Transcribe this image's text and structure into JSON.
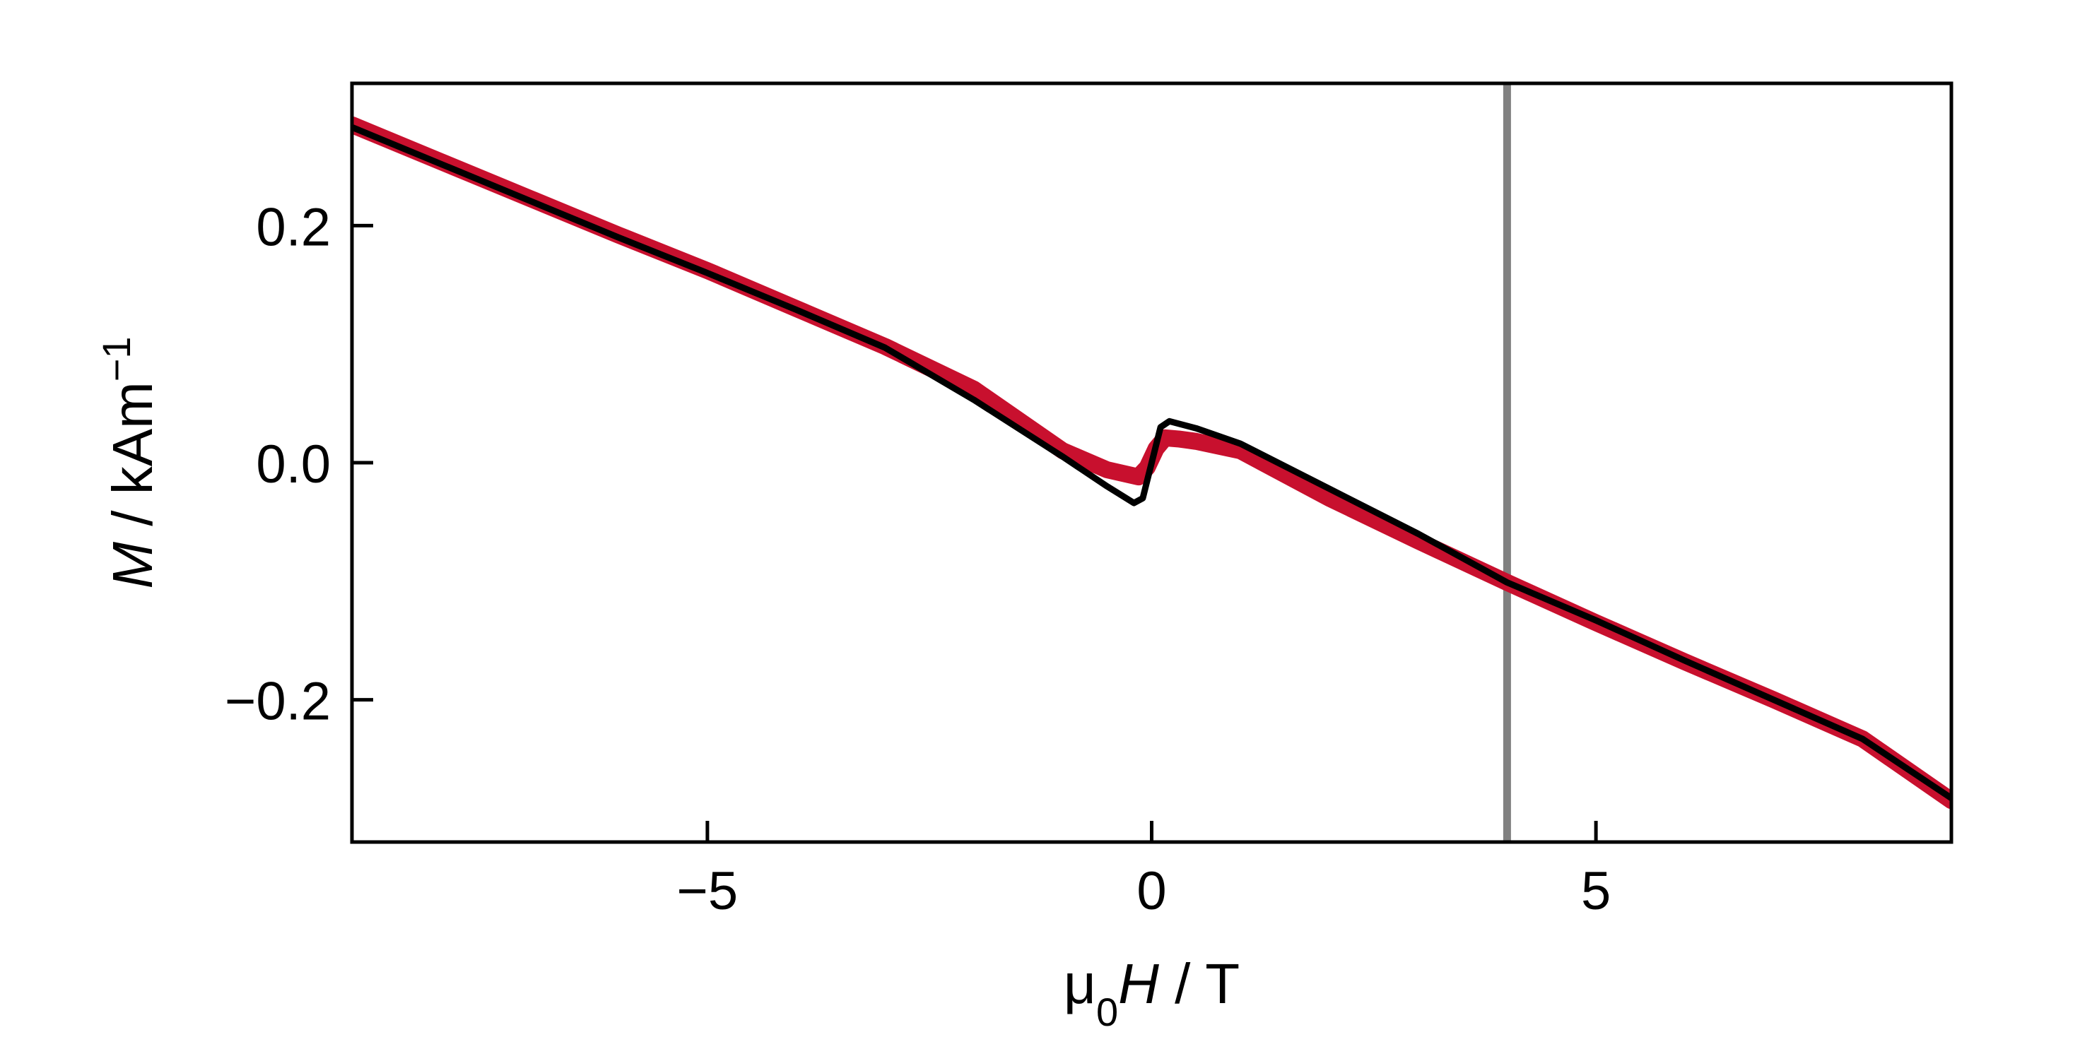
{
  "chart_data": {
    "type": "line",
    "xlabel": {
      "pre": "μ",
      "sub": "0",
      "italic": "H",
      "post": " / T"
    },
    "ylabel": {
      "italic": "M",
      "post": " / kAm",
      "sup": "−1"
    },
    "xlim": [
      -9,
      9
    ],
    "ylim": [
      -0.32,
      0.32
    ],
    "x_ticks": [
      -5,
      0,
      5
    ],
    "x_tick_labels": [
      "−5",
      "0",
      "5"
    ],
    "y_ticks": [
      -0.2,
      0.0,
      0.2
    ],
    "y_tick_labels": [
      "−0.2",
      "0.0",
      "0.2"
    ],
    "grid": false,
    "legend": "none",
    "vertical_line_x": 4.0,
    "series": [
      {
        "style": "thick-band",
        "color": "#c8102e",
        "x": [
          -9,
          -8,
          -7,
          -6,
          -5,
          -4,
          -3,
          -2,
          -1,
          -0.5,
          -0.15,
          -0.05,
          0.05,
          0.15,
          0.3,
          0.5,
          1,
          2,
          3,
          4,
          5,
          6,
          7,
          8,
          9
        ],
        "y": [
          0.285,
          0.254,
          0.223,
          0.192,
          0.162,
          0.13,
          0.098,
          0.062,
          0.01,
          -0.006,
          -0.012,
          -0.004,
          0.012,
          0.021,
          0.02,
          0.018,
          0.01,
          -0.03,
          -0.066,
          -0.101,
          -0.135,
          -0.168,
          -0.2,
          -0.233,
          -0.285
        ]
      },
      {
        "style": "line",
        "color": "#000000",
        "x": [
          -9,
          -8,
          -7,
          -6,
          -5,
          -4,
          -3,
          -2,
          -1,
          -0.5,
          -0.2,
          -0.1,
          0,
          0.1,
          0.2,
          0.5,
          1,
          2,
          3,
          4,
          5,
          6,
          7,
          8,
          9
        ],
        "y": [
          0.283,
          0.252,
          0.221,
          0.19,
          0.16,
          0.129,
          0.097,
          0.053,
          0.005,
          -0.02,
          -0.034,
          -0.03,
          0.0,
          0.03,
          0.035,
          0.029,
          0.016,
          -0.022,
          -0.06,
          -0.101,
          -0.133,
          -0.167,
          -0.2,
          -0.233,
          -0.283
        ]
      }
    ]
  }
}
